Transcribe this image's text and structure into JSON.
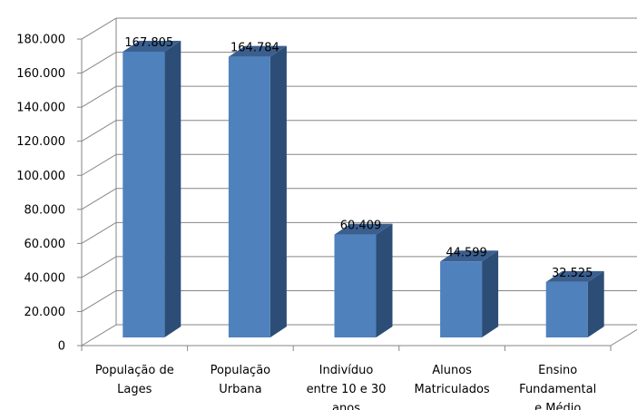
{
  "chart_data": {
    "type": "bar",
    "categories": [
      [
        "População de",
        "Lages"
      ],
      [
        "População",
        "Urbana"
      ],
      [
        "Indivíduo",
        "entre 10 e 30",
        "anos"
      ],
      [
        "Alunos",
        "Matriculados"
      ],
      [
        "Ensino",
        "Fundamental",
        "e Médio"
      ]
    ],
    "values": [
      167805,
      164784,
      60409,
      44599,
      32525
    ],
    "data_labels": [
      "167.805",
      "164.784",
      "60.409",
      "44.599",
      "32.525"
    ],
    "ylim": [
      0,
      180000
    ],
    "yticks": [
      "0",
      "20.000",
      "40.000",
      "60.000",
      "80.000",
      "100.000",
      "120.000",
      "140.000",
      "160.000",
      "180.000"
    ],
    "grid": true,
    "style": "3d-column",
    "colors": {
      "bar_front": "#4f81bd",
      "bar_side": "#2c4d75",
      "bar_top": "#3a5f8f",
      "grid": "#868686"
    }
  }
}
